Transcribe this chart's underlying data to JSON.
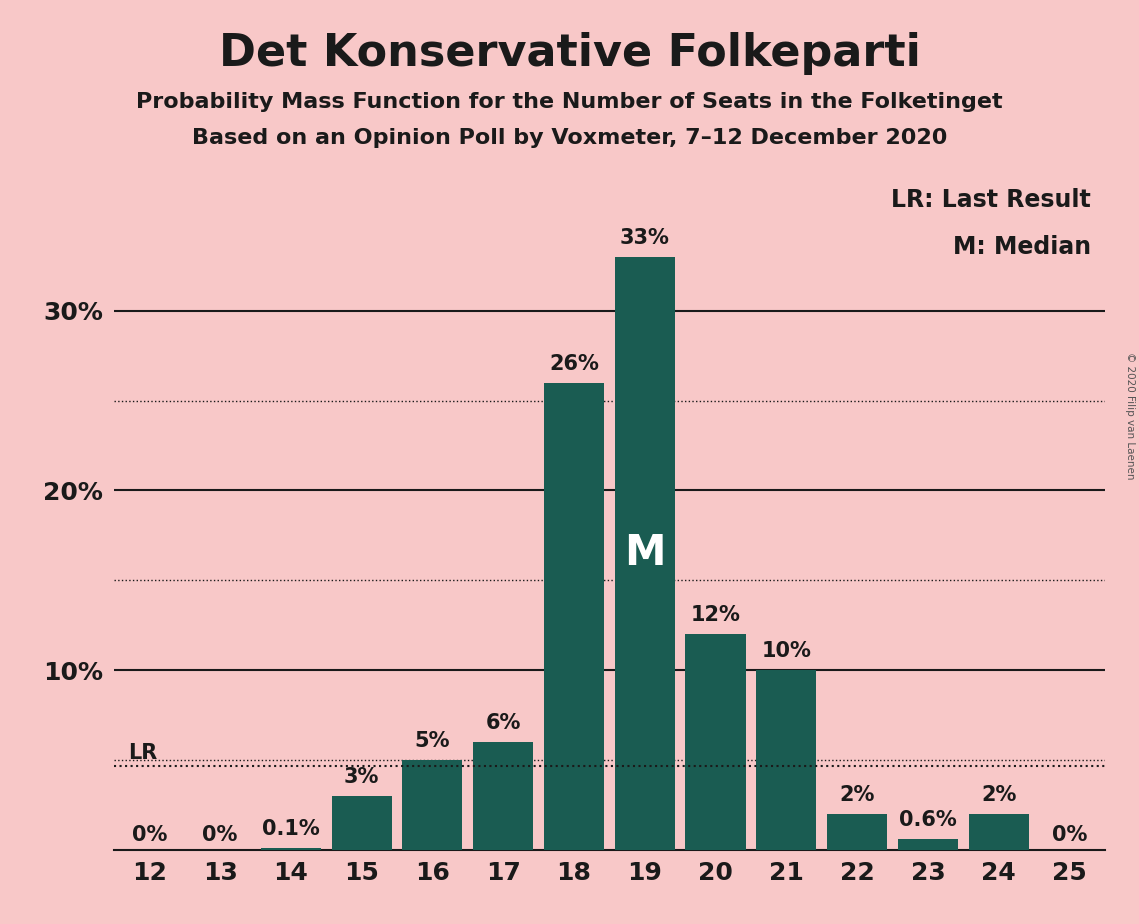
{
  "title": "Det Konservative Folkeparti",
  "subtitle1": "Probability Mass Function for the Number of Seats in the Folketinget",
  "subtitle2": "Based on an Opinion Poll by Voxmeter, 7–12 December 2020",
  "copyright": "© 2020 Filip van Laenen",
  "categories": [
    12,
    13,
    14,
    15,
    16,
    17,
    18,
    19,
    20,
    21,
    22,
    23,
    24,
    25
  ],
  "values": [
    0.0,
    0.0,
    0.1,
    3.0,
    5.0,
    6.0,
    26.0,
    33.0,
    12.0,
    10.0,
    2.0,
    0.6,
    2.0,
    0.0
  ],
  "labels": [
    "0%",
    "0%",
    "0.1%",
    "3%",
    "5%",
    "6%",
    "26%",
    "33%",
    "12%",
    "10%",
    "2%",
    "0.6%",
    "2%",
    "0%"
  ],
  "bar_color": "#1a5c52",
  "background_color": "#f8c8c8",
  "major_yticks": [
    10,
    20,
    30
  ],
  "major_ytick_labels": [
    "10%",
    "20%",
    "30%"
  ],
  "dotted_yticks": [
    5,
    15,
    25
  ],
  "lr_value": 4.7,
  "median_seat": 19,
  "legend_lr": "LR: Last Result",
  "legend_m": "M: Median",
  "title_fontsize": 32,
  "subtitle_fontsize": 16,
  "label_fontsize": 15,
  "tick_fontsize": 18,
  "legend_fontsize": 17,
  "m_fontsize": 30,
  "bar_width": 0.85
}
